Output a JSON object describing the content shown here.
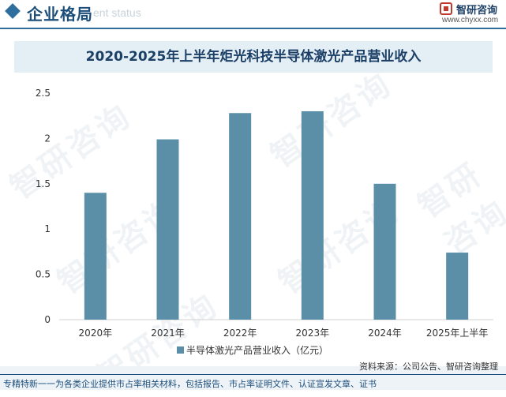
{
  "header": {
    "section_title": "企业格局",
    "section_subtitle": "ent status",
    "brand_name": "智研咨询",
    "site": "www.chyxx.com"
  },
  "watermark_text": "智研咨询",
  "chart_data": {
    "type": "bar",
    "title": "2020-2025年上半年炬光科技半导体激光产品营业收入",
    "categories": [
      "2020年",
      "2021年",
      "2022年",
      "2023年",
      "2024年",
      "2025年上半年"
    ],
    "series": [
      {
        "name": "半导体激光产品营业收入（亿元）",
        "values": [
          1.4,
          1.99,
          2.28,
          2.3,
          1.5,
          0.74
        ]
      }
    ],
    "yticks": [
      "0",
      "0.5",
      "1",
      "1.5",
      "2",
      "2.5"
    ],
    "ylim": [
      0,
      2.5
    ],
    "xlabel": "",
    "ylabel": "",
    "legend": "bottom",
    "grid": false,
    "bar_color": "#5b8fa8"
  },
  "footer": {
    "source": "资料来源：公司公告、智研咨询整理",
    "slogan": "专精特新一一为各类企业提供市占率相关材料，包括报告、市占率证明文件、认证宣发文章、证书"
  }
}
